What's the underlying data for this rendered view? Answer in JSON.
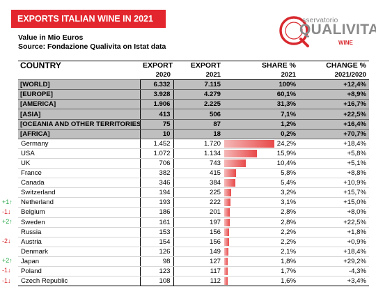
{
  "title": "EXPORTS ITALIAN WINE IN 2021",
  "subtitle_line1": "Value in Mio Euros",
  "subtitle_line2": "Source: Fondazione Qualivita on Istat data",
  "logo": {
    "small": "sservatorio",
    "big": "QUALIVITA",
    "wine": "WINE",
    "colors": {
      "ring": "#d8282e",
      "text": "#8a8a8a",
      "accent": "#d8282e"
    }
  },
  "header": {
    "country": "COUNTRY",
    "export_2020_top": "EXPORT",
    "export_2020_bottom": "2020",
    "export_2021_top": "EXPORT",
    "export_2021_bottom": "2021",
    "share_top": "SHARE %",
    "share_bottom": "2021",
    "change_top": "CHANGE %",
    "change_bottom": "2021/2020"
  },
  "aggregates": [
    {
      "name": "[WORLD]",
      "export_2020": "6.332",
      "export_2021": "7.115",
      "share": "100%",
      "change": "+12,4%"
    },
    {
      "name": "[EUROPE]",
      "export_2020": "3.928",
      "export_2021": "4.279",
      "share": "60,1%",
      "change": "+8,9%"
    },
    {
      "name": "[AMERICA]",
      "export_2020": "1.906",
      "export_2021": "2.225",
      "share": "31,3%",
      "change": "+16,7%"
    },
    {
      "name": "[ASIA]",
      "export_2020": "413",
      "export_2021": "506",
      "share": "7,1%",
      "change": "+22,5%"
    },
    {
      "name": "[OCEANIA AND OTHER TERRITORIES]",
      "export_2020": "75",
      "export_2021": "87",
      "share": "1,2%",
      "change": "+16,4%"
    },
    {
      "name": "[AFRICA]",
      "export_2020": "10",
      "export_2021": "18",
      "share": "0,2%",
      "change": "+70,7%"
    }
  ],
  "countries": [
    {
      "name": "Germany",
      "export_2020": "1.452",
      "export_2021": "1.720",
      "share": "24,2%",
      "share_value": 24.2,
      "change": "+18,4%",
      "rank_change": ""
    },
    {
      "name": "USA",
      "export_2020": "1.072",
      "export_2021": "1.134",
      "share": "15,9%",
      "share_value": 15.9,
      "change": "+5,8%",
      "rank_change": ""
    },
    {
      "name": "UK",
      "export_2020": "706",
      "export_2021": "743",
      "share": "10,4%",
      "share_value": 10.4,
      "change": "+5,1%",
      "rank_change": ""
    },
    {
      "name": "France",
      "export_2020": "382",
      "export_2021": "415",
      "share": "5,8%",
      "share_value": 5.8,
      "change": "+8,8%",
      "rank_change": ""
    },
    {
      "name": "Canada",
      "export_2020": "346",
      "export_2021": "384",
      "share": "5,4%",
      "share_value": 5.4,
      "change": "+10,9%",
      "rank_change": ""
    },
    {
      "name": "Switzerland",
      "export_2020": "194",
      "export_2021": "225",
      "share": "3,2%",
      "share_value": 3.2,
      "change": "+15,7%",
      "rank_change": ""
    },
    {
      "name": "Netherland",
      "export_2020": "193",
      "export_2021": "222",
      "share": "3,1%",
      "share_value": 3.1,
      "change": "+15,0%",
      "rank_change": "+1↑"
    },
    {
      "name": "Belgium",
      "export_2020": "186",
      "export_2021": "201",
      "share": "2,8%",
      "share_value": 2.8,
      "change": "+8,0%",
      "rank_change": "-1↓"
    },
    {
      "name": "Sweden",
      "export_2020": "161",
      "export_2021": "197",
      "share": "2,8%",
      "share_value": 2.8,
      "change": "+22,5%",
      "rank_change": "+2↑"
    },
    {
      "name": "Russia",
      "export_2020": "153",
      "export_2021": "156",
      "share": "2,2%",
      "share_value": 2.2,
      "change": "+1,8%",
      "rank_change": ""
    },
    {
      "name": "Austria",
      "export_2020": "154",
      "export_2021": "156",
      "share": "2,2%",
      "share_value": 2.2,
      "change": "+0,9%",
      "rank_change": "-2↓"
    },
    {
      "name": "Denmark",
      "export_2020": "126",
      "export_2021": "149",
      "share": "2,1%",
      "share_value": 2.1,
      "change": "+18,4%",
      "rank_change": ""
    },
    {
      "name": "Japan",
      "export_2020": "98",
      "export_2021": "127",
      "share": "1,8%",
      "share_value": 1.8,
      "change": "+29,2%",
      "rank_change": "+2↑"
    },
    {
      "name": "Poland",
      "export_2020": "123",
      "export_2021": "117",
      "share": "1,7%",
      "share_value": 1.7,
      "change": "-4,3%",
      "rank_change": "-1↓"
    },
    {
      "name": "Czech Republic",
      "export_2020": "108",
      "export_2021": "112",
      "share": "1,6%",
      "share_value": 1.6,
      "change": "+3,4%",
      "rank_change": "-1↓"
    }
  ],
  "colors": {
    "title_bg": "#e3262d",
    "aggregate_bg": "#bfbfbf",
    "bar_start": "#f5b8b8",
    "bar_end": "#e84a4a",
    "rank_up": "#2aa84a",
    "rank_down": "#d8282e"
  }
}
